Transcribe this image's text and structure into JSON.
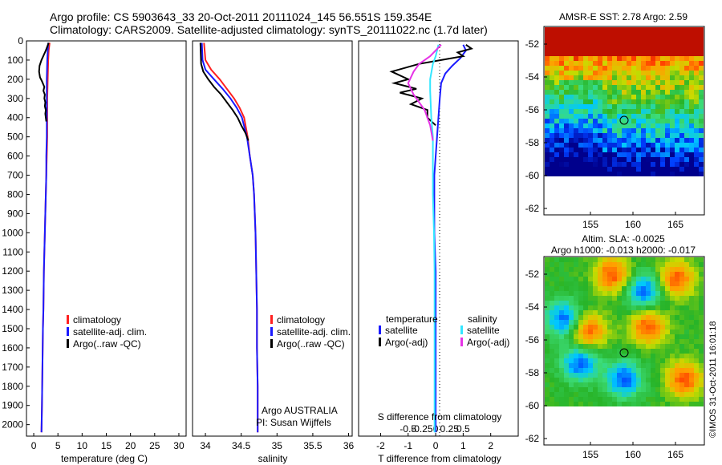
{
  "header": {
    "line1": "Argo profile: CS 5903643_33 20-Oct-2011 20111024_145 56.551S 159.354E",
    "line2": "Climatology: CARS2009. Satellite-adjusted climatology: synTS_20111022.nc (1.7d later)"
  },
  "colors": {
    "climatology": "#ff2020",
    "satellite": "#1a1aff",
    "argo": "#000000",
    "satellite_salinity": "#33e6ff",
    "argo_adj_salinity": "#e633e6"
  },
  "depth_ticks": [
    0,
    100,
    200,
    300,
    400,
    500,
    600,
    700,
    800,
    900,
    1000,
    1100,
    1200,
    1300,
    1400,
    1500,
    1600,
    1700,
    1800,
    1900,
    2000
  ],
  "chart_data": [
    {
      "type": "line",
      "panel": "temperature",
      "xlabel": "temperature (deg C)",
      "xticks": [
        0,
        5,
        10,
        15,
        20,
        25,
        30
      ],
      "xlim": [
        -1.5,
        31.5
      ],
      "ylim": [
        2060,
        0
      ],
      "legend": [
        "climatology",
        "satellite-adj. clim.",
        "Argo(..raw -QC)"
      ],
      "series": [
        {
          "name": "climatology",
          "color": "#ff2020",
          "x": [
            3.3,
            3.1,
            3.0,
            2.9,
            2.8,
            2.8,
            2.8,
            2.7,
            2.6,
            2.5,
            2.4,
            2.3,
            2.2,
            2.1,
            2.0,
            1.9,
            1.8,
            1.7,
            1.6
          ],
          "y": [
            10,
            50,
            100,
            200,
            300,
            400,
            500,
            600,
            700,
            800,
            900,
            1000,
            1100,
            1200,
            1400,
            1500,
            1700,
            1900,
            2040
          ]
        },
        {
          "name": "satellite-adj. clim.",
          "color": "#1a1aff",
          "x": [
            3.0,
            2.9,
            2.8,
            2.7,
            2.7,
            2.7,
            2.7,
            2.6,
            2.6,
            2.5,
            2.4,
            2.3,
            2.2,
            2.1,
            2.0,
            1.9,
            1.8,
            1.7,
            1.6
          ],
          "y": [
            10,
            50,
            100,
            200,
            300,
            400,
            500,
            600,
            700,
            800,
            900,
            1000,
            1100,
            1200,
            1400,
            1500,
            1700,
            1900,
            2040
          ]
        },
        {
          "name": "Argo(..raw -QC)",
          "color": "#000000",
          "x": [
            3.1,
            2.5,
            1.6,
            1.2,
            1.1,
            1.3,
            1.7,
            2.2,
            2.0,
            2.3,
            2.2,
            2.4,
            2.3,
            2.5,
            2.4,
            2.5,
            2.6
          ],
          "y": [
            10,
            50,
            100,
            130,
            160,
            190,
            210,
            240,
            260,
            280,
            300,
            320,
            340,
            360,
            380,
            400,
            420
          ]
        }
      ]
    },
    {
      "type": "line",
      "panel": "salinity",
      "xlabel": "salinity",
      "xticks": [
        34,
        34.5,
        35,
        35.5,
        36
      ],
      "xlim": [
        33.82,
        36.05
      ],
      "ylim": [
        2060,
        0
      ],
      "legend": [
        "climatology",
        "satellite-adj. clim.",
        "Argo(..raw -QC)"
      ],
      "note_lines": [
        "Argo AUSTRALIA",
        "PI: Susan Wijffels"
      ],
      "series": [
        {
          "name": "climatology",
          "color": "#ff2020",
          "x": [
            33.98,
            34.0,
            34.08,
            34.2,
            34.3,
            34.4,
            34.48,
            34.54,
            34.59,
            34.62,
            34.66,
            34.68,
            34.7,
            34.71,
            34.72,
            34.72,
            34.73,
            34.73,
            34.73
          ],
          "y": [
            10,
            100,
            150,
            200,
            250,
            300,
            350,
            400,
            500,
            600,
            700,
            800,
            1000,
            1200,
            1400,
            1600,
            1800,
            1900,
            2040
          ]
        },
        {
          "name": "satellite-adj. clim.",
          "color": "#1a1aff",
          "x": [
            33.95,
            33.96,
            34.0,
            34.12,
            34.24,
            34.35,
            34.44,
            34.51,
            34.58,
            34.62,
            34.66,
            34.68,
            34.7,
            34.71,
            34.72,
            34.72,
            34.73,
            34.73,
            34.73
          ],
          "y": [
            10,
            100,
            150,
            200,
            250,
            300,
            350,
            400,
            500,
            600,
            700,
            800,
            1000,
            1200,
            1400,
            1600,
            1800,
            1900,
            2040
          ]
        },
        {
          "name": "Argo(..raw -QC)",
          "color": "#000000",
          "x": [
            33.93,
            33.94,
            33.97,
            34.04,
            34.12,
            34.22,
            34.3,
            34.38,
            34.45,
            34.5,
            34.56,
            34.6
          ],
          "y": [
            10,
            120,
            160,
            200,
            240,
            280,
            320,
            360,
            400,
            440,
            480,
            520
          ]
        }
      ]
    },
    {
      "type": "line",
      "panel": "difference",
      "xlabel": "T difference from climatology",
      "xlabel2": "S difference from climatology",
      "xticks_T": [
        -2,
        -1,
        0,
        1,
        2
      ],
      "xticks_S": [
        "-0.5",
        "-0.25",
        "0",
        "0.25",
        "0.5"
      ],
      "xlim": [
        -2.8,
        3.0
      ],
      "ylim": [
        2060,
        0
      ],
      "legend_titles": [
        "temperature",
        "salinity"
      ],
      "legend": [
        "satellite",
        "Argo(-adj)",
        "satellite",
        "Argo(-adj)"
      ],
      "series": [
        {
          "name": "temperature satellite",
          "color": "#1a1aff",
          "x": [
            1.0,
            1.1,
            0.9,
            0.6,
            0.35,
            0.2,
            0.15,
            0.1,
            0.05,
            0.0,
            -0.05,
            -0.05,
            -0.05,
            0,
            0,
            0
          ],
          "y": [
            20,
            50,
            90,
            130,
            170,
            220,
            300,
            400,
            500,
            600,
            700,
            800,
            1000,
            1200,
            1600,
            2040
          ]
        },
        {
          "name": "temperature Argo(-adj)",
          "color": "#000000",
          "x": [
            1.1,
            1.3,
            0.8,
            1.0,
            0.2,
            -0.6,
            -1.6,
            -1.0,
            -1.5,
            -0.7,
            -1.3,
            -0.5,
            -0.9,
            -0.3,
            -0.3,
            0
          ],
          "y": [
            20,
            40,
            60,
            80,
            100,
            120,
            160,
            200,
            220,
            250,
            270,
            300,
            330,
            360,
            400,
            440
          ]
        },
        {
          "name": "salinity satellite",
          "color": "#33e6ff",
          "x": [
            0.05,
            0.0,
            -0.05,
            -0.1,
            -0.1,
            -0.08,
            -0.05,
            -0.05,
            -0.05,
            -0.03,
            -0.02,
            -0.02,
            -0.02,
            -0.02
          ],
          "y": [
            20,
            80,
            120,
            200,
            260,
            400,
            500,
            700,
            800,
            1000,
            1200,
            1400,
            1800,
            2040
          ]
        },
        {
          "name": "salinity Argo(-adj)",
          "color": "#e633e6",
          "x": [
            0.1,
            -0.1,
            -0.3,
            -0.4,
            -0.5,
            -0.4,
            -0.2,
            -0.1,
            -0.05
          ],
          "y": [
            20,
            80,
            120,
            160,
            220,
            280,
            360,
            440,
            520
          ]
        }
      ]
    }
  ],
  "maps": {
    "sst": {
      "title": "AMSR-E SST: 2.78 Argo: 2.59",
      "yticks": [
        "-52",
        "-54",
        "-56",
        "-58",
        "-60",
        "-62"
      ],
      "xticks": [
        "155",
        "160",
        "165"
      ]
    },
    "sla": {
      "title1": "Altim. SLA: -0.0025",
      "title2": "Argo h1000: -0.013 h2000: -0.017",
      "yticks": [
        "-52",
        "-54",
        "-56",
        "-58",
        "-60",
        "-62"
      ],
      "xticks": [
        "155",
        "160",
        "165"
      ]
    },
    "watermark": "©IMOS 31-Oct-2011 16:01:18"
  }
}
